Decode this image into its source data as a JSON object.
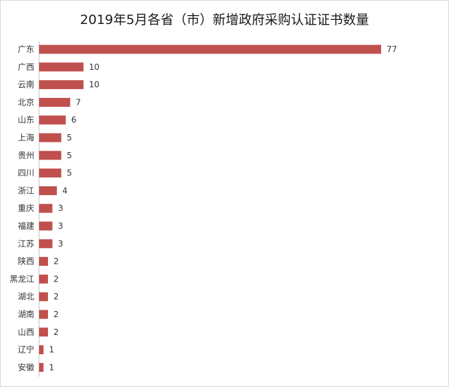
{
  "chart_data": {
    "type": "bar",
    "orientation": "horizontal",
    "title": "2019年5月各省（市）新增政府采购认证证书数量",
    "categories": [
      "广东",
      "广西",
      "云南",
      "北京",
      "山东",
      "上海",
      "贵州",
      "四川",
      "浙江",
      "重庆",
      "福建",
      "江苏",
      "陕西",
      "黑龙江",
      "湖北",
      "湖南",
      "山西",
      "辽宁",
      "安徽"
    ],
    "values": [
      77,
      10,
      10,
      7,
      6,
      5,
      5,
      5,
      4,
      3,
      3,
      3,
      2,
      2,
      2,
      2,
      2,
      1,
      1
    ],
    "xlim": [
      0,
      77
    ],
    "grid": false,
    "legend": "none",
    "data_labels": true,
    "bar_color": "#c0504d"
  }
}
